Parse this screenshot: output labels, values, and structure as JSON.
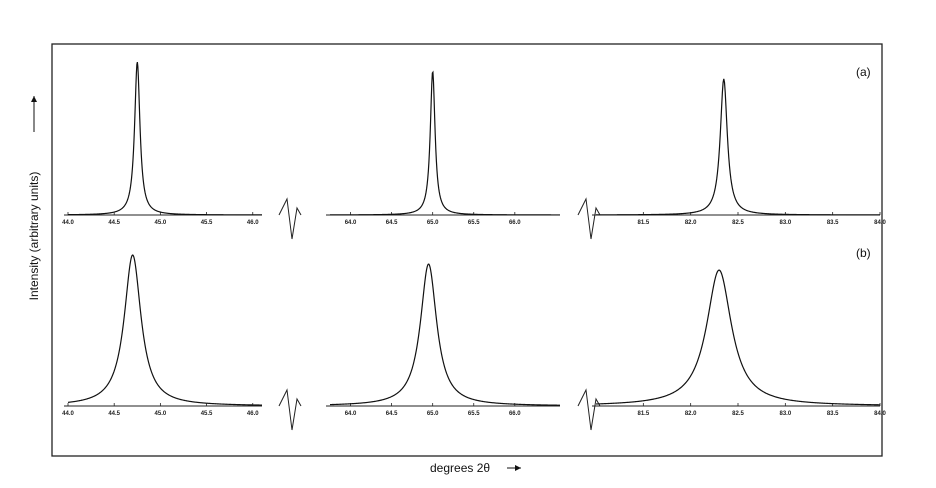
{
  "chart_data": {
    "type": "line",
    "xlabel": "degrees 2θ",
    "ylabel": "Intensity (arbitrary units)",
    "grid": false,
    "segments": [
      {
        "ticks": [
          "44.0",
          "44.5",
          "45.0",
          "45.5",
          "46.0"
        ],
        "tick_values": [
          44.0,
          44.5,
          45.0,
          45.5,
          46.0
        ],
        "xlim": [
          44.0,
          46.1
        ]
      },
      {
        "ticks": [
          "64.0",
          "64.5",
          "65.0",
          "65.5",
          "66.0"
        ],
        "tick_values": [
          64.0,
          64.5,
          65.0,
          65.5,
          66.0
        ],
        "xlim": [
          63.75,
          66.55
        ]
      },
      {
        "ticks": [
          "81.5",
          "82.0",
          "82.5",
          "83.0",
          "83.5",
          "84.0"
        ],
        "tick_values": [
          81.5,
          82.0,
          82.5,
          83.0,
          83.5,
          84.0
        ],
        "xlim": [
          81.0,
          84.0
        ]
      }
    ],
    "panels": [
      {
        "label": "(a)",
        "peaks": [
          {
            "segment": 0,
            "center": 44.75,
            "height": 1.0,
            "hwhm": 0.035
          },
          {
            "segment": 1,
            "center": 65.0,
            "height": 0.94,
            "hwhm": 0.035
          },
          {
            "segment": 2,
            "center": 82.35,
            "height": 0.89,
            "hwhm": 0.045
          }
        ]
      },
      {
        "label": "(b)",
        "peaks": [
          {
            "segment": 0,
            "center": 44.7,
            "height": 1.0,
            "hwhm": 0.11
          },
          {
            "segment": 1,
            "center": 64.95,
            "height": 0.94,
            "hwhm": 0.12
          },
          {
            "segment": 2,
            "center": 82.3,
            "height": 0.9,
            "hwhm": 0.16
          }
        ]
      }
    ]
  }
}
